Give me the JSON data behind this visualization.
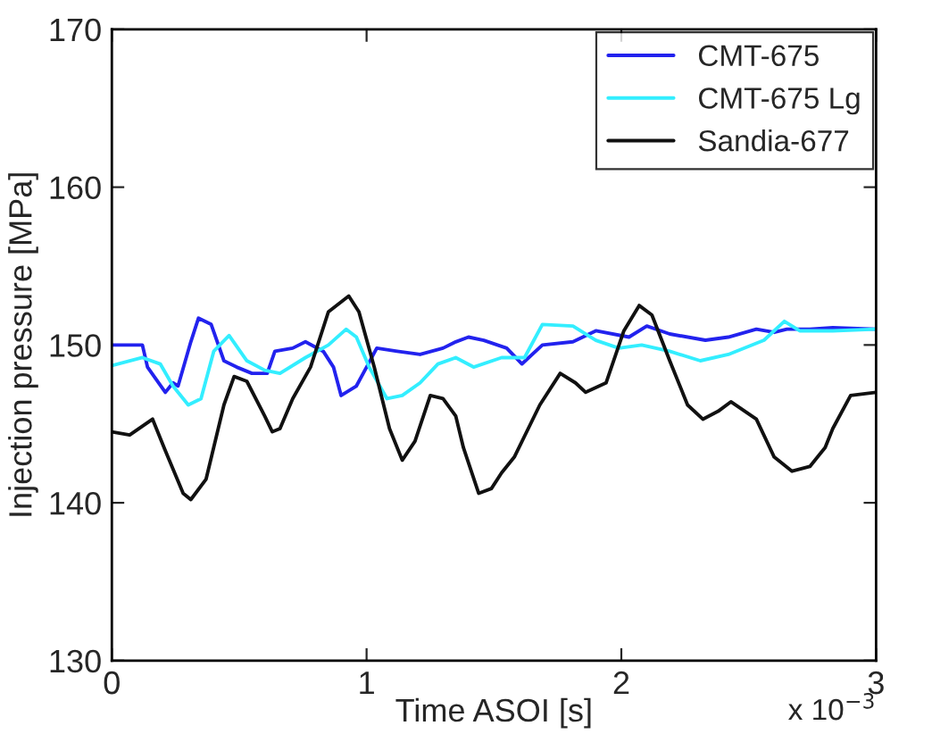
{
  "chart_data": {
    "type": "line",
    "xlabel": "Time ASOI [s]",
    "ylabel": "Injection pressure [MPa]",
    "xlim": [
      0,
      3
    ],
    "xticks": [
      0,
      1,
      2,
      3
    ],
    "ylim": [
      130,
      170
    ],
    "yticks": [
      130,
      140,
      150,
      160,
      170
    ],
    "grid": false,
    "legend": "top right",
    "line_style": "solid",
    "marker": "none",
    "annotations": [
      "x 10$^{−3}$"
    ],
    "series": [
      {
        "name": "CMT-675",
        "color": "#2222ee",
        "x": [
          0,
          0.12,
          0.14,
          0.21,
          0.24,
          0.26,
          0.31,
          0.34,
          0.39,
          0.44,
          0.49,
          0.55,
          0.61,
          0.64,
          0.71,
          0.76,
          0.83,
          0.87,
          0.9,
          0.96,
          1.0,
          1.04,
          1.12,
          1.21,
          1.3,
          1.35,
          1.4,
          1.46,
          1.55,
          1.61,
          1.69,
          1.81,
          1.9,
          2.03,
          2.1,
          2.19,
          2.33,
          2.42,
          2.53,
          2.6,
          2.65,
          2.74,
          2.83,
          3.0
        ],
        "values": [
          150,
          150,
          148.6,
          147.0,
          147.6,
          147.4,
          150.2,
          151.7,
          151.3,
          149.0,
          148.6,
          148.2,
          148.2,
          149.6,
          149.8,
          150.2,
          149.6,
          148.6,
          146.8,
          147.4,
          148.6,
          149.8,
          149.6,
          149.4,
          149.8,
          150.2,
          150.5,
          150.3,
          149.8,
          148.8,
          150.0,
          150.2,
          150.9,
          150.5,
          151.2,
          150.7,
          150.3,
          150.5,
          151.0,
          150.8,
          151.0,
          151.0,
          151.1,
          151.0
        ]
      },
      {
        "name": "CMT-675 Lg",
        "color": "#33eeff",
        "x": [
          0,
          0.12,
          0.19,
          0.24,
          0.3,
          0.35,
          0.4,
          0.46,
          0.53,
          0.6,
          0.66,
          0.76,
          0.85,
          0.92,
          0.96,
          1.01,
          1.08,
          1.14,
          1.21,
          1.28,
          1.35,
          1.42,
          1.53,
          1.62,
          1.69,
          1.81,
          1.9,
          1.99,
          2.08,
          2.19,
          2.31,
          2.42,
          2.56,
          2.64,
          2.7,
          2.83,
          3.0
        ],
        "values": [
          148.7,
          149.2,
          148.8,
          147.4,
          146.2,
          146.6,
          149.6,
          150.6,
          149.0,
          148.4,
          148.2,
          149.2,
          150.0,
          151.0,
          150.5,
          148.6,
          146.6,
          146.8,
          147.6,
          148.8,
          149.2,
          148.6,
          149.2,
          149.2,
          151.3,
          151.2,
          150.3,
          149.8,
          150.0,
          149.6,
          149.0,
          149.4,
          150.3,
          151.5,
          150.9,
          150.9,
          151.0
        ]
      },
      {
        "name": "Sandia-677",
        "color": "#111111",
        "x": [
          0,
          0.07,
          0.16,
          0.21,
          0.28,
          0.31,
          0.37,
          0.44,
          0.48,
          0.53,
          0.6,
          0.63,
          0.66,
          0.71,
          0.78,
          0.85,
          0.93,
          0.97,
          1.03,
          1.09,
          1.14,
          1.19,
          1.25,
          1.3,
          1.35,
          1.38,
          1.44,
          1.49,
          1.53,
          1.58,
          1.68,
          1.76,
          1.82,
          1.86,
          1.94,
          2.01,
          2.07,
          2.12,
          2.19,
          2.26,
          2.32,
          2.38,
          2.43,
          2.53,
          2.6,
          2.67,
          2.74,
          2.8,
          2.83,
          2.9,
          3.0
        ],
        "values": [
          144.5,
          144.3,
          145.3,
          143.3,
          140.6,
          140.2,
          141.5,
          146.2,
          148.0,
          147.7,
          145.5,
          144.5,
          144.7,
          146.6,
          148.6,
          152.1,
          153.1,
          152.1,
          148.6,
          144.7,
          142.7,
          143.9,
          146.8,
          146.6,
          145.5,
          143.5,
          140.6,
          140.9,
          141.9,
          142.9,
          146.2,
          148.2,
          147.6,
          147.0,
          147.6,
          150.9,
          152.5,
          151.9,
          149.0,
          146.2,
          145.3,
          145.8,
          146.4,
          145.3,
          142.9,
          142.0,
          142.3,
          143.5,
          144.7,
          146.8,
          147.0
        ]
      }
    ]
  }
}
